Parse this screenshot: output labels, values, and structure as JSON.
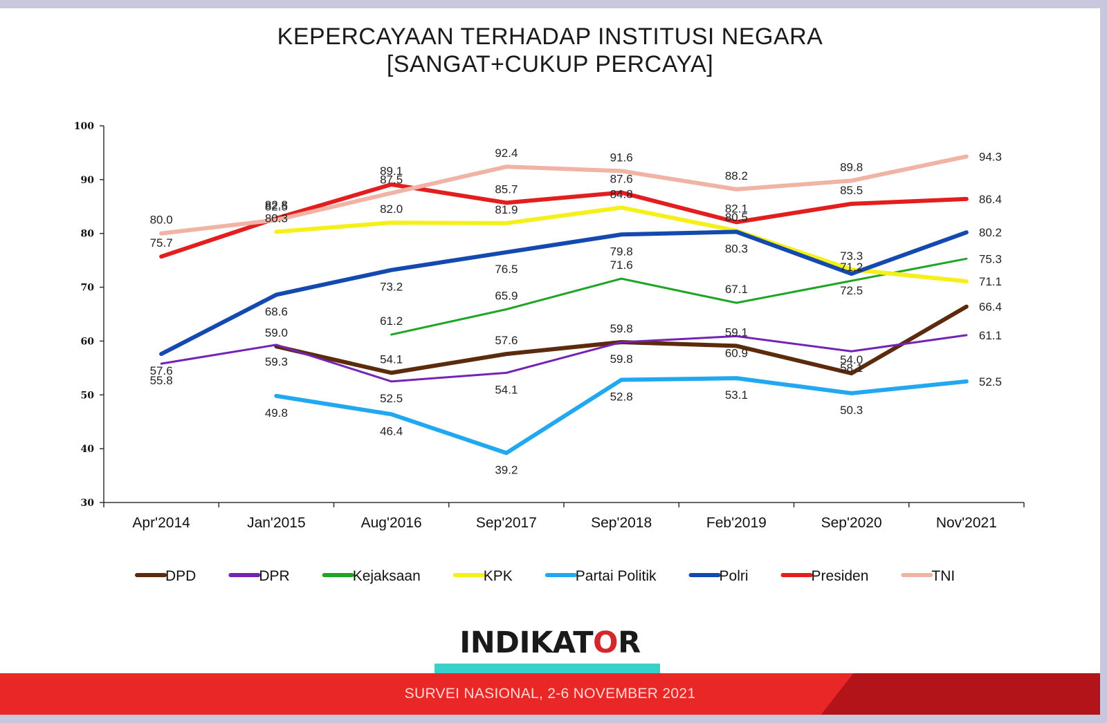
{
  "title_line1": "KEPERCAYAAN TERHADAP INSTITUSI NEGARA",
  "title_line2": "[SANGAT+CUKUP PERCAYA]",
  "logo_text": "INDIKATOR",
  "footer_text": "SURVEI NASIONAL, 2-6 NOVEMBER 2021",
  "chart_data": {
    "type": "line",
    "categories": [
      "Apr'2014",
      "Jan'2015",
      "Aug'2016",
      "Sep'2017",
      "Sep'2018",
      "Feb'2019",
      "Sep'2020",
      "Nov'2021"
    ],
    "ylim": [
      30,
      100
    ],
    "yticks": [
      30,
      40,
      50,
      60,
      70,
      80,
      90,
      100
    ],
    "grid": false,
    "legend_position": "bottom",
    "series": [
      {
        "name": "DPD",
        "color": "#5c2a0c",
        "width": 6,
        "values": [
          null,
          59.0,
          54.1,
          57.6,
          59.8,
          59.1,
          54.0,
          66.4
        ]
      },
      {
        "name": "DPR",
        "color": "#7423b4",
        "width": 3,
        "values": [
          55.8,
          59.3,
          52.5,
          54.1,
          59.8,
          60.9,
          58.1,
          61.1
        ]
      },
      {
        "name": "Kejaksaan",
        "color": "#1fa526",
        "width": 3,
        "values": [
          null,
          null,
          61.2,
          65.9,
          71.6,
          67.1,
          71.2,
          75.3
        ]
      },
      {
        "name": "KPK",
        "color": "#f5f01a",
        "width": 6,
        "values": [
          null,
          80.3,
          82.0,
          81.9,
          84.8,
          80.5,
          73.3,
          71.1
        ]
      },
      {
        "name": "Partai Politik",
        "color": "#22a8f0",
        "width": 6,
        "values": [
          null,
          49.8,
          46.4,
          39.2,
          52.8,
          53.1,
          50.3,
          52.5
        ]
      },
      {
        "name": "Polri",
        "color": "#1449b0",
        "width": 6,
        "values": [
          57.6,
          68.6,
          73.2,
          76.5,
          79.8,
          80.3,
          72.5,
          80.2
        ]
      },
      {
        "name": "Presiden",
        "color": "#e31e1e",
        "width": 6,
        "values": [
          75.7,
          82.8,
          89.1,
          85.7,
          87.6,
          82.1,
          85.5,
          86.4
        ]
      },
      {
        "name": "TNI",
        "color": "#f1b3a3",
        "width": 6,
        "values": [
          80.0,
          82.5,
          87.5,
          92.4,
          91.6,
          88.2,
          89.8,
          94.3
        ]
      }
    ]
  }
}
